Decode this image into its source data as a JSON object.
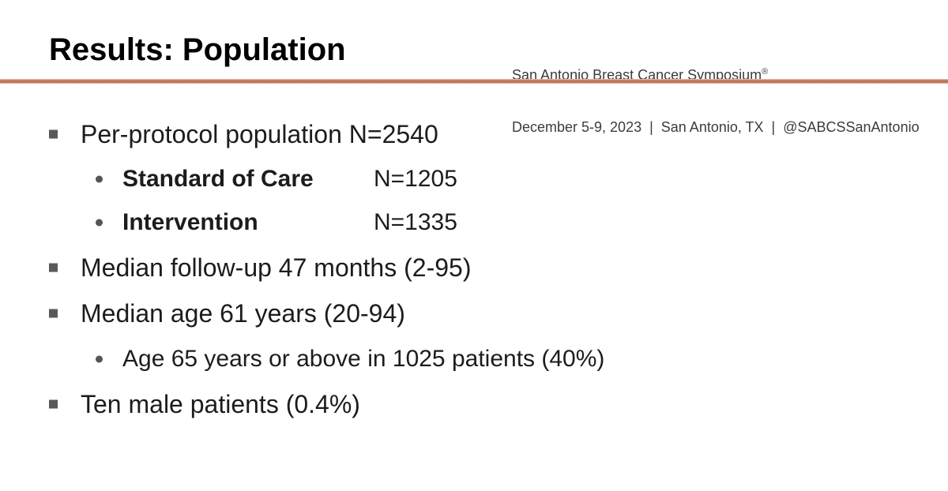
{
  "header": {
    "title": "Results: Population",
    "conference_line1": "San Antonio Breast Cancer Symposium",
    "registered_mark": "®",
    "conference_line2": "December 5-9, 2023  |  San Antonio, TX  |  @SABCSSanAntonio"
  },
  "colors": {
    "accent_divider": "#c0735a",
    "bullet_marker": "#595959",
    "body_text": "#1c1c1c",
    "title_text": "#000000",
    "header_text": "#3c3c3c"
  },
  "content": {
    "bullets": [
      {
        "level": 1,
        "text": "Per-protocol population N=2540"
      },
      {
        "level": 2,
        "label": "Standard of Care",
        "value": "N=1205"
      },
      {
        "level": 2,
        "label": "Intervention",
        "value": "N=1335"
      },
      {
        "level": 1,
        "text": "Median follow-up 47 months (2-95)"
      },
      {
        "level": 1,
        "text": "Median age 61 years (20-94)"
      },
      {
        "level": 2,
        "text": "Age 65 years or above in 1025 patients (40%)"
      },
      {
        "level": 1,
        "text": "Ten male patients (0.4%)"
      }
    ]
  }
}
